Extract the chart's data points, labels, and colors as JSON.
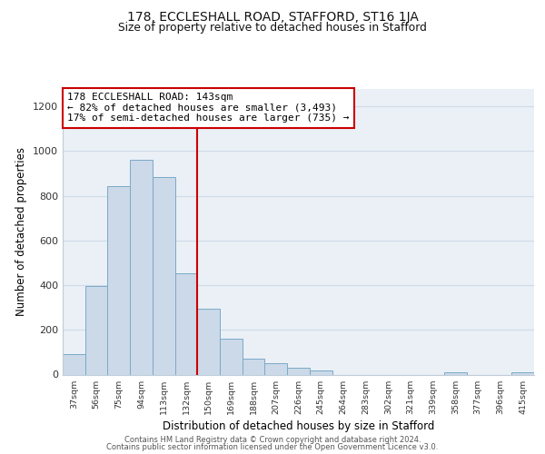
{
  "title": "178, ECCLESHALL ROAD, STAFFORD, ST16 1JA",
  "subtitle": "Size of property relative to detached houses in Stafford",
  "xlabel": "Distribution of detached houses by size in Stafford",
  "ylabel": "Number of detached properties",
  "categories": [
    "37sqm",
    "56sqm",
    "75sqm",
    "94sqm",
    "113sqm",
    "132sqm",
    "150sqm",
    "169sqm",
    "188sqm",
    "207sqm",
    "226sqm",
    "245sqm",
    "264sqm",
    "283sqm",
    "302sqm",
    "321sqm",
    "339sqm",
    "358sqm",
    "377sqm",
    "396sqm",
    "415sqm"
  ],
  "values": [
    90,
    395,
    845,
    960,
    885,
    455,
    295,
    160,
    70,
    50,
    32,
    18,
    0,
    0,
    0,
    0,
    0,
    12,
    0,
    0,
    12
  ],
  "bar_color": "#ccd9e8",
  "bar_edge_color": "#7aaac8",
  "vline_x": 6,
  "vline_color": "#cc0000",
  "annotation_text": "178 ECCLESHALL ROAD: 143sqm\n← 82% of detached houses are smaller (3,493)\n17% of semi-detached houses are larger (735) →",
  "annotation_box_color": "#ffffff",
  "annotation_box_edge_color": "#cc0000",
  "ylim": [
    0,
    1280
  ],
  "yticks": [
    0,
    200,
    400,
    600,
    800,
    1000,
    1200
  ],
  "footer_line1": "Contains HM Land Registry data © Crown copyright and database right 2024.",
  "footer_line2": "Contains public sector information licensed under the Open Government Licence v3.0.",
  "bg_color": "#eaf0f6",
  "grid_color": "#d0dbe6",
  "spine_color": "#c0ccd8"
}
